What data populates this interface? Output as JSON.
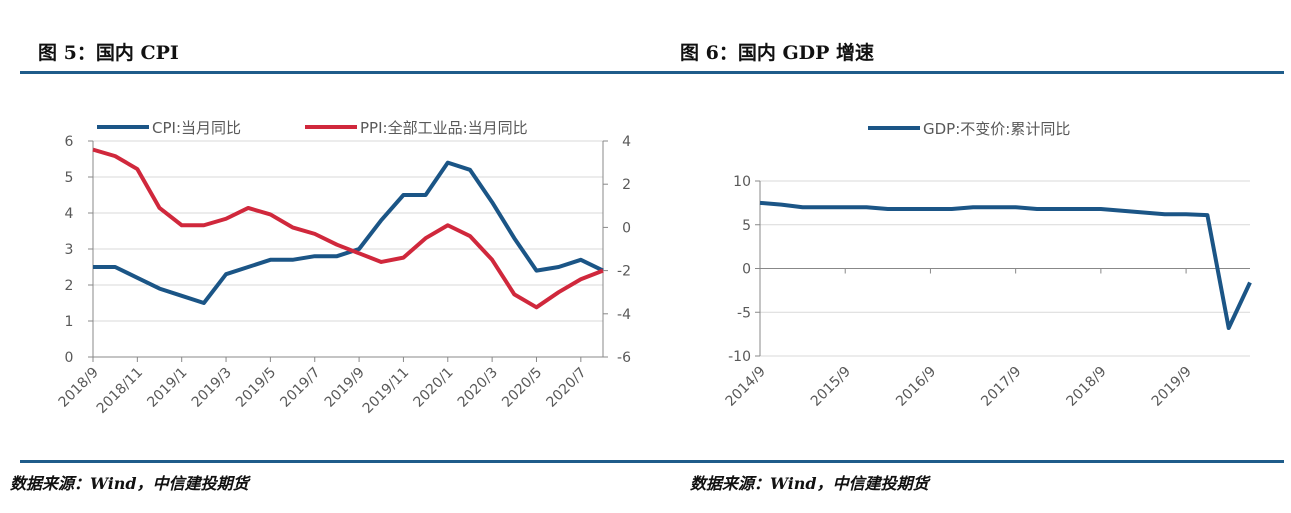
{
  "page": {
    "left_heading": "图 5：国内 CPI",
    "right_heading": "图 6：国内 GDP 增速",
    "left_source": "数据来源：Wind，中信建投期货",
    "right_source": "数据来源：Wind，中信建投期货",
    "rule_color": "#1f5c8a"
  },
  "chart_data": [
    {
      "type": "line",
      "x": [
        "2018/9",
        "2018/10",
        "2018/11",
        "2018/12",
        "2019/1",
        "2019/2",
        "2019/3",
        "2019/4",
        "2019/5",
        "2019/6",
        "2019/7",
        "2019/8",
        "2019/9",
        "2019/10",
        "2019/11",
        "2019/12",
        "2020/1",
        "2020/2",
        "2020/3",
        "2020/4",
        "2020/5",
        "2020/6",
        "2020/7",
        "2020/8"
      ],
      "x_tick_labels": [
        "2018/9",
        "2018/11",
        "2019/1",
        "2019/3",
        "2019/5",
        "2019/7",
        "2019/9",
        "2019/11",
        "2020/1",
        "2020/3",
        "2020/5",
        "2020/7"
      ],
      "series": [
        {
          "name": "CPI:当月同比",
          "axis": "left",
          "color": "#1b5586",
          "values": [
            2.5,
            2.5,
            2.2,
            1.9,
            1.7,
            1.5,
            2.3,
            2.5,
            2.7,
            2.7,
            2.8,
            2.8,
            3.0,
            3.8,
            4.5,
            4.5,
            5.4,
            5.2,
            4.3,
            3.3,
            2.4,
            2.5,
            2.7,
            2.4
          ]
        },
        {
          "name": "PPI:全部工业品:当月同比",
          "axis": "right",
          "color": "#d0283c",
          "values": [
            3.6,
            3.3,
            2.7,
            0.9,
            0.1,
            0.1,
            0.4,
            0.9,
            0.6,
            0.0,
            -0.3,
            -0.8,
            -1.2,
            -1.6,
            -1.4,
            -0.5,
            0.1,
            -0.4,
            -1.5,
            -3.1,
            -3.7,
            -3.0,
            -2.4,
            -2.0
          ]
        }
      ],
      "ylim_left": [
        0,
        6
      ],
      "yticks_left": [
        0,
        1,
        2,
        3,
        4,
        5,
        6
      ],
      "ylim_right": [
        -6,
        4
      ],
      "yticks_right": [
        -6,
        -4,
        -2,
        0,
        2,
        4
      ],
      "grid": true,
      "legend": "top"
    },
    {
      "type": "line",
      "x": [
        "2014/9",
        "2014/12",
        "2015/3",
        "2015/6",
        "2015/9",
        "2015/12",
        "2016/3",
        "2016/6",
        "2016/9",
        "2016/12",
        "2017/3",
        "2017/6",
        "2017/9",
        "2017/12",
        "2018/3",
        "2018/6",
        "2018/9",
        "2018/12",
        "2019/3",
        "2019/6",
        "2019/9",
        "2019/12",
        "2020/3",
        "2020/6"
      ],
      "x_tick_labels": [
        "2014/9",
        "2015/9",
        "2016/9",
        "2017/9",
        "2018/9",
        "2019/9"
      ],
      "series": [
        {
          "name": "GDP:不变价:累计同比",
          "color": "#1b5586",
          "values": [
            7.5,
            7.3,
            7.0,
            7.0,
            7.0,
            7.0,
            6.8,
            6.8,
            6.8,
            6.8,
            7.0,
            7.0,
            7.0,
            6.8,
            6.8,
            6.8,
            6.8,
            6.6,
            6.4,
            6.2,
            6.2,
            6.1,
            -6.8,
            -1.6
          ]
        }
      ],
      "ylim": [
        -10,
        10
      ],
      "yticks": [
        -10,
        -5,
        0,
        5,
        10
      ],
      "grid": true,
      "legend": "top"
    }
  ]
}
